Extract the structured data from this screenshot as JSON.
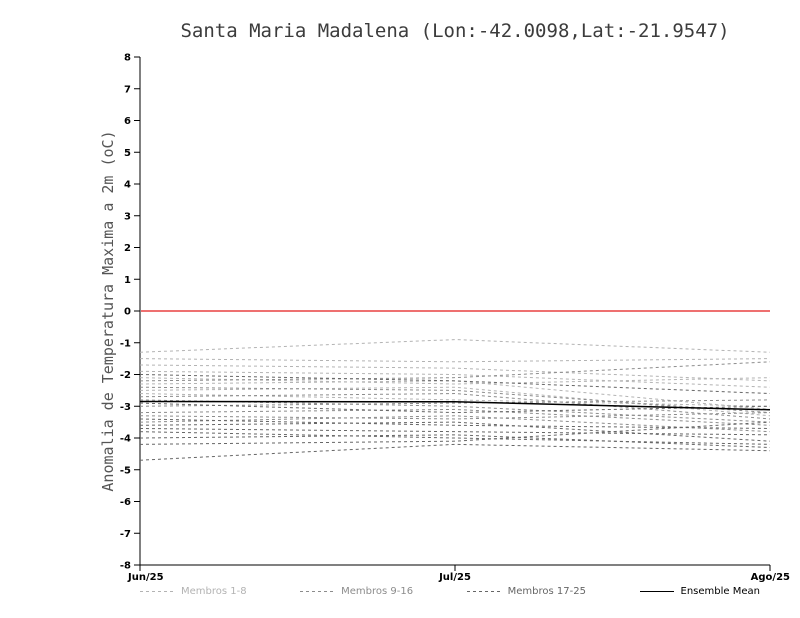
{
  "chart_data": {
    "type": "line",
    "title": "Santa Maria Madalena (Lon:-42.0098,Lat:-21.9547)",
    "ylabel": "Anomalia de Temperatura Maxima a 2m (oC)",
    "xlabel": "",
    "x_categories": [
      "Jun/25",
      "Jul/25",
      "Ago/25"
    ],
    "ylim": [
      -8,
      8
    ],
    "ytick_step": 1,
    "grid": false,
    "zero_line": {
      "value": 0,
      "color": "#e84040"
    },
    "groups": [
      {
        "name": "Membros 1-8",
        "color": "#b3b3b3",
        "style": "dashed",
        "series": [
          {
            "member": 1,
            "values": [
              -1.3,
              -0.9,
              -1.3
            ]
          },
          {
            "member": 2,
            "values": [
              -1.5,
              -1.6,
              -1.5
            ]
          },
          {
            "member": 3,
            "values": [
              -1.7,
              -1.8,
              -2.2
            ]
          },
          {
            "member": 4,
            "values": [
              -1.9,
              -2.0,
              -2.4
            ]
          },
          {
            "member": 5,
            "values": [
              -2.1,
              -2.3,
              -2.1
            ]
          },
          {
            "member": 6,
            "values": [
              -2.3,
              -2.2,
              -3.1
            ]
          },
          {
            "member": 7,
            "values": [
              -2.5,
              -2.4,
              -3.3
            ]
          },
          {
            "member": 8,
            "values": [
              -2.6,
              -2.8,
              -3.0
            ]
          }
        ]
      },
      {
        "name": "Membros 9-16",
        "color": "#8c8c8c",
        "style": "dashed",
        "series": [
          {
            "member": 9,
            "values": [
              -2.2,
              -2.1,
              -1.6
            ]
          },
          {
            "member": 10,
            "values": [
              -2.4,
              -2.5,
              -3.2
            ]
          },
          {
            "member": 11,
            "values": [
              -2.7,
              -2.6,
              -3.4
            ]
          },
          {
            "member": 12,
            "values": [
              -2.8,
              -3.0,
              -3.5
            ]
          },
          {
            "member": 13,
            "values": [
              -3.0,
              -2.9,
              -2.8
            ]
          },
          {
            "member": 14,
            "values": [
              -3.2,
              -3.1,
              -3.6
            ]
          },
          {
            "member": 15,
            "values": [
              -3.3,
              -3.4,
              -3.2
            ]
          },
          {
            "member": 16,
            "values": [
              -3.5,
              -3.3,
              -3.8
            ]
          }
        ]
      },
      {
        "name": "Membros 17-25",
        "color": "#666666",
        "style": "dashed",
        "series": [
          {
            "member": 17,
            "values": [
              -3.4,
              -3.6,
              -3.7
            ]
          },
          {
            "member": 18,
            "values": [
              -3.6,
              -3.5,
              -4.1
            ]
          },
          {
            "member": 19,
            "values": [
              -3.7,
              -3.8,
              -3.9
            ]
          },
          {
            "member": 20,
            "values": [
              -3.8,
              -4.0,
              -4.2
            ]
          },
          {
            "member": 21,
            "values": [
              -4.0,
              -3.9,
              -4.3
            ]
          },
          {
            "member": 22,
            "values": [
              -4.2,
              -4.1,
              -3.5
            ]
          },
          {
            "member": 23,
            "values": [
              -4.7,
              -4.2,
              -4.4
            ]
          },
          {
            "member": 24,
            "values": [
              -2.0,
              -2.2,
              -2.6
            ]
          },
          {
            "member": 25,
            "values": [
              -2.9,
              -3.2,
              -3.0
            ]
          }
        ]
      }
    ],
    "ensemble_mean": {
      "name": "Ensemble Mean",
      "color": "#000000",
      "style": "solid",
      "values": [
        -2.85,
        -2.86,
        -3.11
      ]
    },
    "legend": [
      {
        "label": "Membros 1-8",
        "color": "#b3b3b3",
        "style": "dashed"
      },
      {
        "label": "Membros 9-16",
        "color": "#8c8c8c",
        "style": "dashed"
      },
      {
        "label": "Membros 17-25",
        "color": "#666666",
        "style": "dashed"
      },
      {
        "label": "Ensemble Mean",
        "color": "#000000",
        "style": "solid"
      }
    ]
  }
}
